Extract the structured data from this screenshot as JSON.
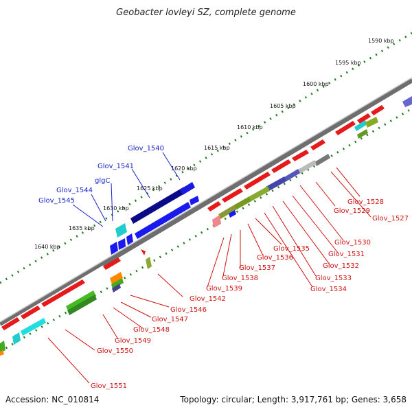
{
  "title": "Geobacter lovleyi SZ, complete genome",
  "footer": {
    "accession": "Accession: NC_010814",
    "topology": "Topology: circular; Length: 3,917,761 bp; Genes: 3,658"
  },
  "ticks": [
    "1590 kbp",
    "1595 kbp",
    "1600 kbp",
    "1605 kbp",
    "1610 kbp",
    "1615 kbp",
    "1620 kbp",
    "1625 kbp",
    "1630 kbp",
    "1635 kbp",
    "1640 kbp"
  ],
  "genes_blue": [
    "Glov_1540",
    "Glov_1541",
    "glgC",
    "Glov_1544",
    "Glov_1545"
  ],
  "genes_red": [
    "Glov_1528",
    "Glov_1527",
    "Glov_1529",
    "Glov_1530",
    "Glov_1531",
    "Glov_1532",
    "Glov_1533",
    "Glov_1534",
    "Glov_1535",
    "Glov_1536",
    "Glov_1537",
    "Glov_1538",
    "Glov_1539",
    "Glov_1542",
    "Glov_1546",
    "Glov_1547",
    "Glov_1548",
    "Glov_1549",
    "Glov_1550",
    "Glov_1551"
  ],
  "colors": {
    "backbone": "#8a8a8a",
    "blue_label": "#1a23c8",
    "red_label": "#d01010",
    "tick_green": "#1e7a1e"
  }
}
